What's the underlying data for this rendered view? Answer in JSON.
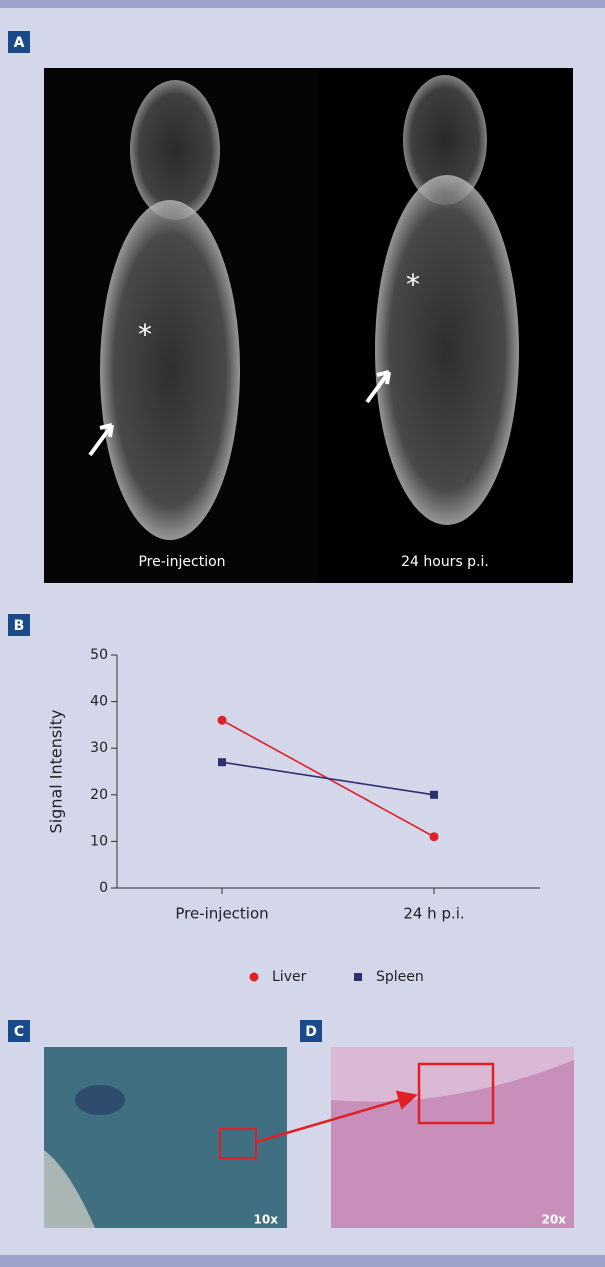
{
  "panels": {
    "a": {
      "label": "A",
      "captions": [
        "Pre-injection",
        "24 hours p.i."
      ],
      "annotations": [
        "*",
        "*"
      ]
    },
    "b": {
      "label": "B"
    },
    "c": {
      "label": "C",
      "magnification": "10x"
    },
    "d": {
      "label": "D",
      "magnification": "20x"
    }
  },
  "chart_data": {
    "type": "line",
    "y_label": "Signal Intensity",
    "categories": [
      "Pre-injection",
      "24 h p.i."
    ],
    "series": [
      {
        "name": "Liver",
        "color": "#e02027",
        "marker": "circle",
        "values": [
          36,
          11
        ]
      },
      {
        "name": "Spleen",
        "color": "#2e3170",
        "marker": "square",
        "values": [
          27,
          20
        ]
      }
    ],
    "ylim": [
      0,
      50
    ],
    "yticks": [
      0,
      10,
      20,
      30,
      40,
      50
    ],
    "grid": false,
    "legend": "bottom"
  }
}
